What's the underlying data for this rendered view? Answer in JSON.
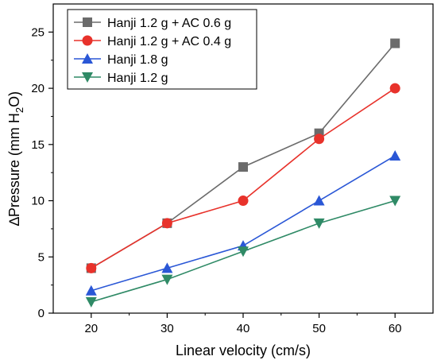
{
  "chart_data": {
    "type": "line",
    "x": [
      20,
      30,
      40,
      50,
      60
    ],
    "series": [
      {
        "name": "Hanji 1.2 g + AC 0.6 g",
        "values": [
          4,
          8,
          13,
          16,
          24
        ],
        "color": "#6b6b6b",
        "marker": "square"
      },
      {
        "name": "Hanji 1.2 g + AC 0.4 g",
        "values": [
          4,
          8,
          10,
          15.5,
          20
        ],
        "color": "#e8322b",
        "marker": "circle"
      },
      {
        "name": "Hanji 1.8 g",
        "values": [
          2,
          4,
          6,
          10,
          14
        ],
        "color": "#2a57d6",
        "marker": "triangle-up"
      },
      {
        "name": "Hanji 1.2 g",
        "values": [
          1,
          3,
          5.5,
          8,
          10
        ],
        "color": "#2f8a66",
        "marker": "triangle-down"
      }
    ],
    "xlabel": "Linear velocity (cm/s)",
    "ylabel": {
      "prefix": "∆Pressure (mm H",
      "sub": "2",
      "suffix": "O)"
    },
    "xlim": [
      15,
      65
    ],
    "ylim": [
      0,
      27.5
    ],
    "xticks": [
      20,
      30,
      40,
      50,
      60
    ],
    "yticks": [
      0,
      5,
      10,
      15,
      20,
      25
    ],
    "grid": false,
    "legend_position": "top-left"
  }
}
